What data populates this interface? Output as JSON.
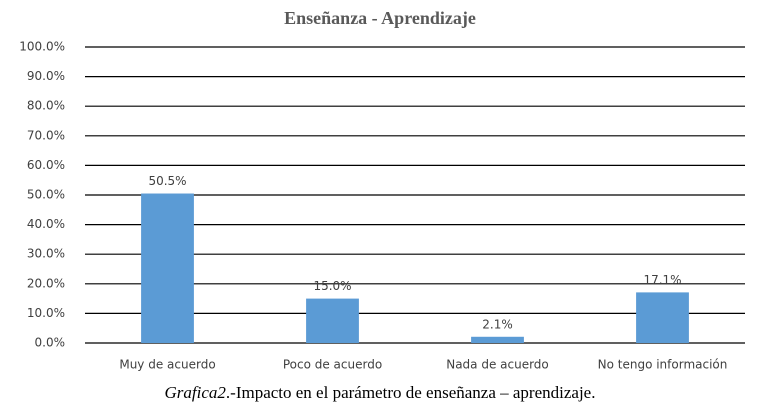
{
  "chart_data": {
    "type": "bar",
    "title": "Enseñanza - Aprendizaje",
    "categories": [
      "Muy de acuerdo",
      "Poco de acuerdo",
      "Nada de acuerdo",
      "No tengo información"
    ],
    "values": [
      50.5,
      15.0,
      2.1,
      17.1
    ],
    "value_labels": [
      "50.5%",
      "15.0%",
      "2.1%",
      "17.1%"
    ],
    "color": "#5b9bd5",
    "ylim": [
      0,
      100
    ],
    "yticks": [
      {
        "value": 0,
        "label": "0.0%"
      },
      {
        "value": 10,
        "label": "10.0%"
      },
      {
        "value": 20,
        "label": "20.0%"
      },
      {
        "value": 30,
        "label": "30.0%"
      },
      {
        "value": 40,
        "label": "40.0%"
      },
      {
        "value": 50,
        "label": "50.0%"
      },
      {
        "value": 60,
        "label": "60.0%"
      },
      {
        "value": 70,
        "label": "70.0%"
      },
      {
        "value": 80,
        "label": "80.0%"
      },
      {
        "value": 90,
        "label": "90.0%"
      },
      {
        "value": 100,
        "label": "100.0%"
      }
    ],
    "grid": true,
    "caption": [
      "Grafica2",
      ".-Impacto en el parámetro de enseñanza – aprendizaje."
    ]
  }
}
